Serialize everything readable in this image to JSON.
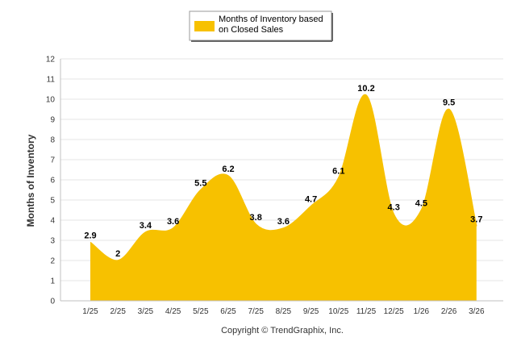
{
  "chart_data": {
    "type": "area",
    "categories": [
      "1/25",
      "2/25",
      "3/25",
      "4/25",
      "5/25",
      "6/25",
      "7/25",
      "8/25",
      "9/25",
      "10/25",
      "11/25",
      "12/25",
      "1/26",
      "2/26",
      "3/26"
    ],
    "series": [
      {
        "name": "Months of Inventory based on Closed Sales",
        "legend_lines": [
          "Months of Inventory based",
          "on Closed Sales"
        ],
        "values": [
          2.9,
          2,
          3.4,
          3.6,
          5.5,
          6.2,
          3.8,
          3.6,
          4.7,
          6.1,
          10.2,
          4.3,
          4.5,
          9.5,
          3.7
        ],
        "labels": [
          "2.9",
          "2",
          "3.4",
          "3.6",
          "5.5",
          "6.2",
          "3.8",
          "3.6",
          "4.7",
          "6.1",
          "10.2",
          "4.3",
          "4.5",
          "9.5",
          "3.7"
        ],
        "color": "#F7C100"
      }
    ],
    "yticks": [
      "0",
      "1",
      "2",
      "3",
      "4",
      "5",
      "6",
      "7",
      "8",
      "9",
      "10",
      "11",
      "12"
    ],
    "ylabel": "Months of Inventory",
    "xlabel": "",
    "title": "",
    "ylim": [
      0,
      12
    ],
    "grid": true,
    "legend_position": "top-center"
  },
  "footer": {
    "copyright": "Copyright © TrendGraphix, Inc."
  }
}
